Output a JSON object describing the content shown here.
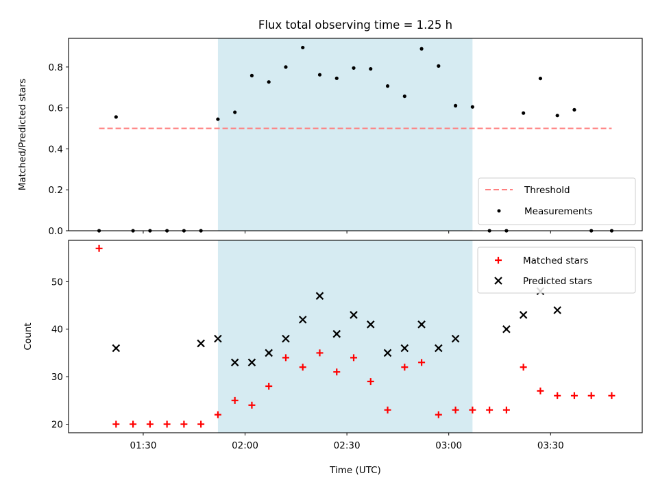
{
  "chart_data": [
    {
      "type": "scatter",
      "title": "Flux total observing time = 1.25 h",
      "xlabel": "",
      "ylabel": "Matched/Predicted stars",
      "ylim": [
        0,
        0.94
      ],
      "yticks": [
        "0.0",
        "0.2",
        "0.4",
        "0.6",
        "0.8"
      ],
      "shaded_interval": [
        "01:52",
        "03:07"
      ],
      "threshold": {
        "name": "Threshold",
        "value": 0.5,
        "x_range": [
          "01:17",
          "03:48"
        ],
        "color": "#ff7f7f"
      },
      "series": [
        {
          "name": "Measurements",
          "color": "#000000",
          "x": [
            "01:17",
            "01:22",
            "01:27",
            "01:32",
            "01:37",
            "01:42",
            "01:47",
            "01:52",
            "01:57",
            "02:02",
            "02:07",
            "02:12",
            "02:17",
            "02:22",
            "02:27",
            "02:32",
            "02:37",
            "02:42",
            "02:47",
            "02:52",
            "02:57",
            "03:02",
            "03:07",
            "03:12",
            "03:17",
            "03:22",
            "03:27",
            "03:32",
            "03:37",
            "03:42",
            "03:48"
          ],
          "y": [
            0,
            0.556,
            0,
            0,
            0,
            0,
            0,
            0.545,
            0.579,
            0.758,
            0.727,
            0.8,
            0.895,
            0.762,
            0.745,
            0.795,
            0.791,
            0.707,
            0.657,
            0.889,
            0.805,
            0.611,
            0.605,
            0,
            0,
            0.575,
            0.744,
            0.563,
            0.591,
            0,
            0
          ]
        }
      ],
      "legend": {
        "position": "lower-right",
        "entries": [
          "Threshold",
          "Measurements"
        ]
      }
    },
    {
      "type": "scatter",
      "xlabel": "Time (UTC)",
      "ylabel": "Count",
      "ylim": [
        18.2,
        58.7
      ],
      "yticks": [
        "20",
        "30",
        "40",
        "50"
      ],
      "xticks": [
        "01:30",
        "02:00",
        "02:30",
        "03:00",
        "03:30"
      ],
      "shaded_interval": [
        "01:52",
        "03:07"
      ],
      "series": [
        {
          "name": "Matched stars",
          "marker": "plus",
          "color": "#ff0000",
          "x": [
            "01:17",
            "01:22",
            "01:27",
            "01:32",
            "01:37",
            "01:42",
            "01:47",
            "01:52",
            "01:57",
            "02:02",
            "02:07",
            "02:12",
            "02:17",
            "02:22",
            "02:27",
            "02:32",
            "02:37",
            "02:42",
            "02:47",
            "02:52",
            "02:57",
            "03:02",
            "03:07",
            "03:12",
            "03:17",
            "03:22",
            "03:27",
            "03:32",
            "03:37",
            "03:42",
            "03:48"
          ],
          "y": [
            57,
            20,
            20,
            20,
            20,
            20,
            20,
            22,
            25,
            24,
            28,
            34,
            32,
            35,
            31,
            34,
            29,
            23,
            32,
            33,
            22,
            23,
            23,
            23,
            23,
            32,
            27,
            26,
            26,
            26,
            26
          ]
        },
        {
          "name": "Predicted stars",
          "marker": "x",
          "color": "#000000",
          "x": [
            "01:22",
            "01:47",
            "01:52",
            "01:57",
            "02:02",
            "02:07",
            "02:12",
            "02:17",
            "02:22",
            "02:27",
            "02:32",
            "02:37",
            "02:42",
            "02:47",
            "02:52",
            "02:57",
            "03:02",
            "03:17",
            "03:22",
            "03:27",
            "03:32"
          ],
          "y": [
            36,
            37,
            38,
            33,
            33,
            35,
            38,
            42,
            47,
            39,
            43,
            41,
            35,
            36,
            41,
            36,
            38,
            40,
            43,
            48,
            44
          ]
        }
      ],
      "legend": {
        "position": "upper-right",
        "entries": [
          "Matched stars",
          "Predicted stars"
        ]
      }
    }
  ]
}
